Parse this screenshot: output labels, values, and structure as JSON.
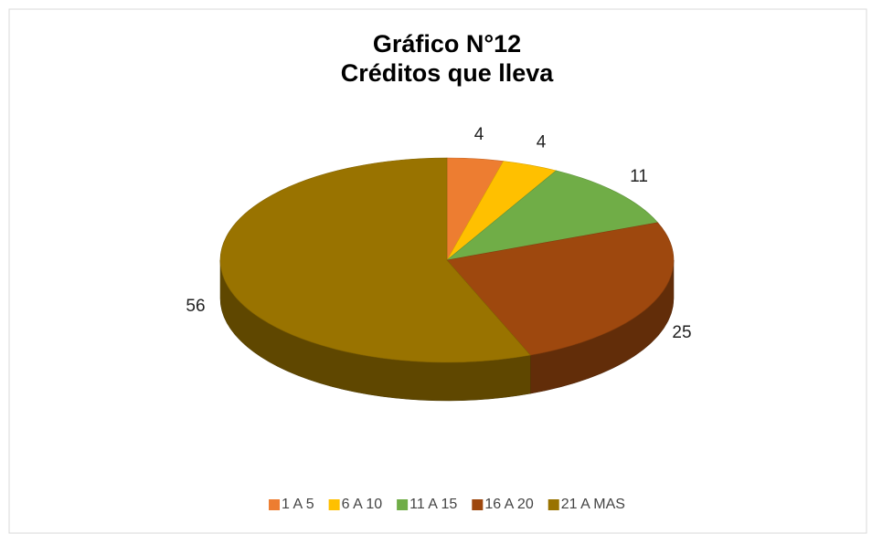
{
  "chart_data": {
    "type": "pie",
    "title": "Gráfico N°12",
    "subtitle": "Créditos que lleva",
    "categories": [
      "1 A 5",
      "6 A 10",
      "11 A 15",
      "16 A 20",
      "21 A MAS"
    ],
    "values": [
      4,
      4,
      11,
      25,
      56
    ],
    "colors": [
      "#ed7d31",
      "#ffc000",
      "#70ad47",
      "#9e480e",
      "#997300"
    ],
    "legend": "bottom"
  }
}
